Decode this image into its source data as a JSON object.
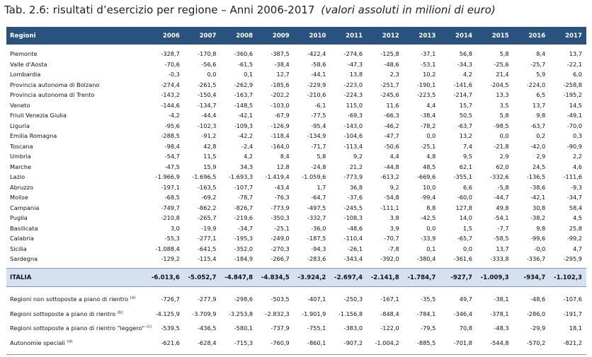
{
  "title": {
    "main": "Tab. 2.6: risultati d’esercizio per regione – Anni 2006-2017",
    "sub": "(valori assoluti in milioni di euro)"
  },
  "table": {
    "columns": [
      "Regioni",
      "2006",
      "2007",
      "2008",
      "2009",
      "2010",
      "2011",
      "2012",
      "2013",
      "2014",
      "2015",
      "2016",
      "2017"
    ],
    "rows": [
      {
        "name": "Piemonte",
        "values": [
          "-328,7",
          "-170,8",
          "-360,6",
          "-387,5",
          "-422,4",
          "-274,6",
          "-125,8",
          "-37,1",
          "56,8",
          "5,8",
          "8,4",
          "13,7"
        ]
      },
      {
        "name": "Valle d'Aosta",
        "values": [
          "-70,6",
          "-56,6",
          "-61,5",
          "-38,4",
          "-58,6",
          "-47,3",
          "-48,6",
          "-53,1",
          "-34,3",
          "-25,6",
          "-25,7",
          "-22,1"
        ]
      },
      {
        "name": "Lombardia",
        "values": [
          "-0,3",
          "0,0",
          "0,1",
          "12,7",
          "-44,1",
          "13,8",
          "2,3",
          "10,2",
          "4,2",
          "21,4",
          "5,9",
          "6,0"
        ]
      },
      {
        "name": "Provincia autonoma di Bolzano",
        "values": [
          "-274,4",
          "-261,5",
          "-262,9",
          "-185,6",
          "-229,9",
          "-223,0",
          "-251,7",
          "-190,1",
          "-141,6",
          "-204,5",
          "-224,0",
          "-258,8"
        ]
      },
      {
        "name": "Provincia autonoma di Trento",
        "values": [
          "-143,2",
          "-150,4",
          "-163,7",
          "-202,2",
          "-210,6",
          "-224,3",
          "-245,6",
          "-223,5",
          "-214,7",
          "13,3",
          "6,5",
          "-195,2"
        ]
      },
      {
        "name": "Veneto",
        "values": [
          "-144,6",
          "-134,7",
          "-148,5",
          "-103,0",
          "-6,1",
          "115,0",
          "11,6",
          "4,4",
          "15,7",
          "3,5",
          "13,7",
          "14,5"
        ]
      },
      {
        "name": "Friuli Venezia Giulia",
        "values": [
          "-4,2",
          "-44,4",
          "-42,1",
          "-67,9",
          "-77,5",
          "-69,3",
          "-66,3",
          "-38,4",
          "50,5",
          "5,8",
          "9,8",
          "-49,1"
        ]
      },
      {
        "name": "Liguria",
        "values": [
          "-95,6",
          "-102,3",
          "-109,3",
          "-126,9",
          "-95,4",
          "-143,0",
          "-46,2",
          "-78,2",
          "-63,7",
          "-98,5",
          "-63,7",
          "-70,0"
        ]
      },
      {
        "name": "Emilia Romagna",
        "values": [
          "-288,5",
          "-91,2",
          "-42,2",
          "-118,4",
          "-134,9",
          "-104,6",
          "-47,7",
          "0,0",
          "13,2",
          "0,0",
          "0,2",
          "0,3"
        ]
      },
      {
        "name": "Toscana",
        "values": [
          "-98,4",
          "42,8",
          "-2,4",
          "-164,0",
          "-71,7",
          "-113,4",
          "-50,6",
          "-25,1",
          "7,4",
          "-21,8",
          "-42,0",
          "-90,9"
        ]
      },
      {
        "name": "Umbria",
        "values": [
          "-54,7",
          "11,5",
          "4,2",
          "8,4",
          "5,8",
          "9,2",
          "4,4",
          "4,8",
          "9,5",
          "2,9",
          "2,9",
          "2,2"
        ]
      },
      {
        "name": "Marche",
        "values": [
          "-47,5",
          "15,9",
          "34,3",
          "12,8",
          "-24,8",
          "21,2",
          "-44,8",
          "48,5",
          "62,1",
          "62,0",
          "24,5",
          "4,6"
        ]
      },
      {
        "name": "Lazio",
        "values": [
          "-1.966,9",
          "-1.696,5",
          "-1.693,3",
          "-1.419,4",
          "-1.059,6",
          "-773,9",
          "-613,2",
          "-669,6",
          "-355,1",
          "-332,6",
          "-136,5",
          "-111,6"
        ]
      },
      {
        "name": "Abruzzo",
        "values": [
          "-197,1",
          "-163,5",
          "-107,7",
          "-43,4",
          "1,7",
          "36,8",
          "9,2",
          "10,0",
          "6,6",
          "-5,8",
          "-38,6",
          "-9,3"
        ]
      },
      {
        "name": "Molise",
        "values": [
          "-68,5",
          "-69,2",
          "-78,7",
          "-76,3",
          "-64,7",
          "-37,6",
          "-54,8",
          "-99,4",
          "-60,0",
          "-44,7",
          "-42,1",
          "-34,7"
        ]
      },
      {
        "name": "Campania",
        "values": [
          "-749,7",
          "-862,2",
          "-826,7",
          "-773,9",
          "-497,5",
          "-245,5",
          "-111,1",
          "8,8",
          "127,8",
          "49,8",
          "30,8",
          "58,4"
        ]
      },
      {
        "name": "Puglia",
        "values": [
          "-210,8",
          "-265,7",
          "-219,6",
          "-350,3",
          "-332,7",
          "-108,3",
          "3,8",
          "-42,5",
          "14,0",
          "-54,1",
          "-38,2",
          "4,5"
        ]
      },
      {
        "name": "Basilicata",
        "values": [
          "3,0",
          "-19,9",
          "-34,7",
          "-25,1",
          "-36,0",
          "-48,6",
          "3,9",
          "0,0",
          "1,5",
          "-7,7",
          "9,8",
          "25,8"
        ]
      },
      {
        "name": "Calabria",
        "values": [
          "-55,3",
          "-277,1",
          "-195,3",
          "-249,0",
          "-187,5",
          "-110,4",
          "-70,7",
          "-33,9",
          "-65,7",
          "-58,5",
          "-99,6",
          "-99,2"
        ]
      },
      {
        "name": "Sicilia",
        "values": [
          "-1.088,4",
          "-641,5",
          "-352,0",
          "-270,3",
          "-94,3",
          "-26,1",
          "-7,8",
          "0,1",
          "0,0",
          "13,7",
          "-0,0",
          "4,7"
        ]
      },
      {
        "name": "Sardegna",
        "values": [
          "-129,2",
          "-115,4",
          "-184,9",
          "-266,7",
          "-283,6",
          "-343,4",
          "-392,0",
          "-380,4",
          "-361,6",
          "-333,8",
          "-336,7",
          "-295,9"
        ]
      }
    ],
    "total": {
      "name": "ITALIA",
      "values": [
        "-6.013,6",
        "-5.052,7",
        "-4.847,8",
        "-4.834,5",
        "-3.924,2",
        "-2.697,4",
        "-2.141,8",
        "-1.784,7",
        "-927,7",
        "-1.009,3",
        "-934,7",
        "-1.102,3"
      ]
    },
    "footer_rows": [
      {
        "name": "Regioni non sottoposte a piano di rientro",
        "note": "(a)",
        "values": [
          "-726,7",
          "-277,9",
          "-298,6",
          "-503,5",
          "-407,1",
          "-250,3",
          "-167,1",
          "-35,5",
          "49,7",
          "-38,1",
          "-48,6",
          "-107,6"
        ]
      },
      {
        "name": "Regioni sottoposte a piano di rientro",
        "note": "(b)",
        "values": [
          "-4.125,9",
          "-3.709,9",
          "-3.253,8",
          "-2.832,3",
          "-1.901,9",
          "-1.156,8",
          "-848,4",
          "-784,1",
          "-346,4",
          "-378,1",
          "-286,0",
          "-191,7"
        ]
      },
      {
        "name": "Regioni sottoposte a piano di rientro \"leggero\"",
        "note": "(c)",
        "values": [
          "-539,5",
          "-436,5",
          "-580,1",
          "-737,9",
          "-755,1",
          "-383,0",
          "-122,0",
          "-79,5",
          "70,8",
          "-48,3",
          "-29,9",
          "18,1"
        ]
      },
      {
        "name": "Autonomie speciali",
        "note": "(d)",
        "values": [
          "-621,6",
          "-628,4",
          "-715,3",
          "-760,9",
          "-860,1",
          "-907,2",
          "-1.004,2",
          "-885,5",
          "-701,8",
          "-544,8",
          "-570,2",
          "-821,2"
        ]
      }
    ]
  },
  "colors": {
    "header_bg": "#29527f",
    "total_bg": "#d5e1f1"
  }
}
